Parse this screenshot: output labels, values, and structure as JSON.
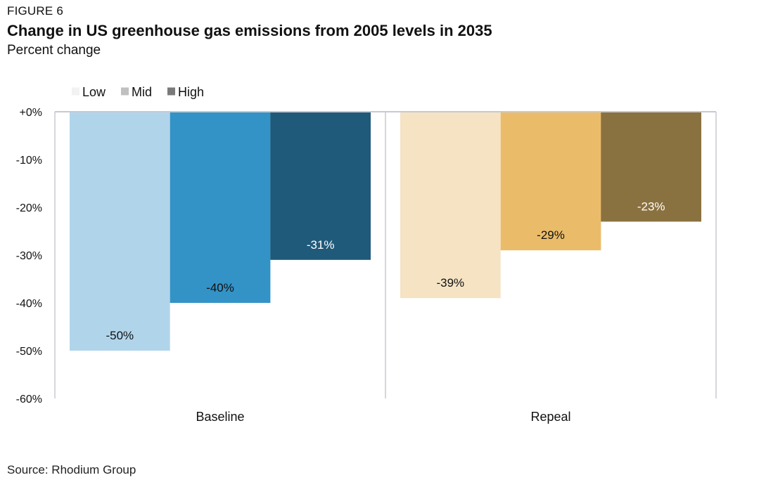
{
  "figure_label": "FIGURE 6",
  "title": "Change in US greenhouse gas emissions from 2005 levels in 2035",
  "subtitle": "Percent change",
  "source": "Source: Rhodium Group",
  "chart_data": {
    "type": "bar",
    "categories": [
      "Baseline",
      "Repeal"
    ],
    "series": [
      {
        "name": "Low",
        "values": [
          -50,
          -39
        ]
      },
      {
        "name": "Mid",
        "values": [
          -40,
          -29
        ]
      },
      {
        "name": "High",
        "values": [
          -31,
          -23
        ]
      }
    ],
    "data_labels": [
      [
        "-50%",
        "-40%",
        "-31%"
      ],
      [
        "-39%",
        "-29%",
        "-23%"
      ]
    ],
    "colors": [
      [
        "#b0d5eb",
        "#3393c7",
        "#205a7a"
      ],
      [
        "#f5e3c4",
        "#eabc6a",
        "#8a7140"
      ]
    ],
    "label_colors": [
      [
        "#111111",
        "#111111",
        "#ffffff"
      ],
      [
        "#111111",
        "#111111",
        "#ffffff"
      ]
    ],
    "legend_swatch_colors": [
      "#f2f2f2",
      "#c0c0c0",
      "#7a7a7a"
    ],
    "ylim": [
      -60,
      0
    ],
    "yticks": [
      0,
      -10,
      -20,
      -30,
      -40,
      -50,
      -60
    ],
    "ytick_labels": [
      "+0%",
      "-10%",
      "-20%",
      "-30%",
      "-40%",
      "-50%",
      "-60%"
    ],
    "xlabel": "",
    "ylabel": "",
    "grid": false,
    "legend_position": "top-left",
    "axis_color": "#c8c8d0"
  }
}
